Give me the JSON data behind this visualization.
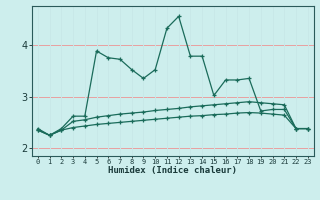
{
  "xlabel": "Humidex (Indice chaleur)",
  "bg_color": "#cdeeed",
  "grid_color_h": "#e8a0a0",
  "grid_color_v": "#c8e8e8",
  "line_color": "#1a6b5a",
  "xlim": [
    -0.5,
    23.5
  ],
  "ylim": [
    1.85,
    4.75
  ],
  "yticks": [
    2,
    3,
    4
  ],
  "xticks": [
    0,
    1,
    2,
    3,
    4,
    5,
    6,
    7,
    8,
    9,
    10,
    11,
    12,
    13,
    14,
    15,
    16,
    17,
    18,
    19,
    20,
    21,
    22,
    23
  ],
  "series1_x": [
    0,
    1,
    2,
    3,
    4,
    5,
    6,
    7,
    8,
    9,
    10,
    11,
    12,
    13,
    14,
    15,
    16,
    17,
    18,
    19,
    20,
    21,
    22,
    23
  ],
  "series1_y": [
    2.38,
    2.25,
    2.38,
    2.62,
    2.62,
    3.88,
    3.75,
    3.72,
    3.52,
    3.35,
    3.52,
    4.32,
    4.55,
    3.78,
    3.78,
    3.02,
    3.32,
    3.32,
    3.35,
    2.72,
    2.75,
    2.75,
    2.38,
    2.38
  ],
  "series2_x": [
    0,
    1,
    2,
    3,
    4,
    5,
    6,
    7,
    8,
    9,
    10,
    11,
    12,
    13,
    14,
    15,
    16,
    17,
    18,
    19,
    20,
    21,
    22,
    23
  ],
  "series2_y": [
    2.35,
    2.25,
    2.35,
    2.52,
    2.55,
    2.6,
    2.63,
    2.66,
    2.68,
    2.7,
    2.73,
    2.75,
    2.77,
    2.8,
    2.82,
    2.84,
    2.86,
    2.88,
    2.9,
    2.88,
    2.86,
    2.84,
    2.38,
    2.38
  ],
  "series3_x": [
    0,
    1,
    2,
    3,
    4,
    5,
    6,
    7,
    8,
    9,
    10,
    11,
    12,
    13,
    14,
    15,
    16,
    17,
    18,
    19,
    20,
    21,
    22,
    23
  ],
  "series3_y": [
    2.35,
    2.25,
    2.35,
    2.4,
    2.43,
    2.46,
    2.48,
    2.5,
    2.52,
    2.54,
    2.56,
    2.58,
    2.6,
    2.62,
    2.63,
    2.65,
    2.66,
    2.68,
    2.69,
    2.68,
    2.66,
    2.64,
    2.38,
    2.38
  ]
}
